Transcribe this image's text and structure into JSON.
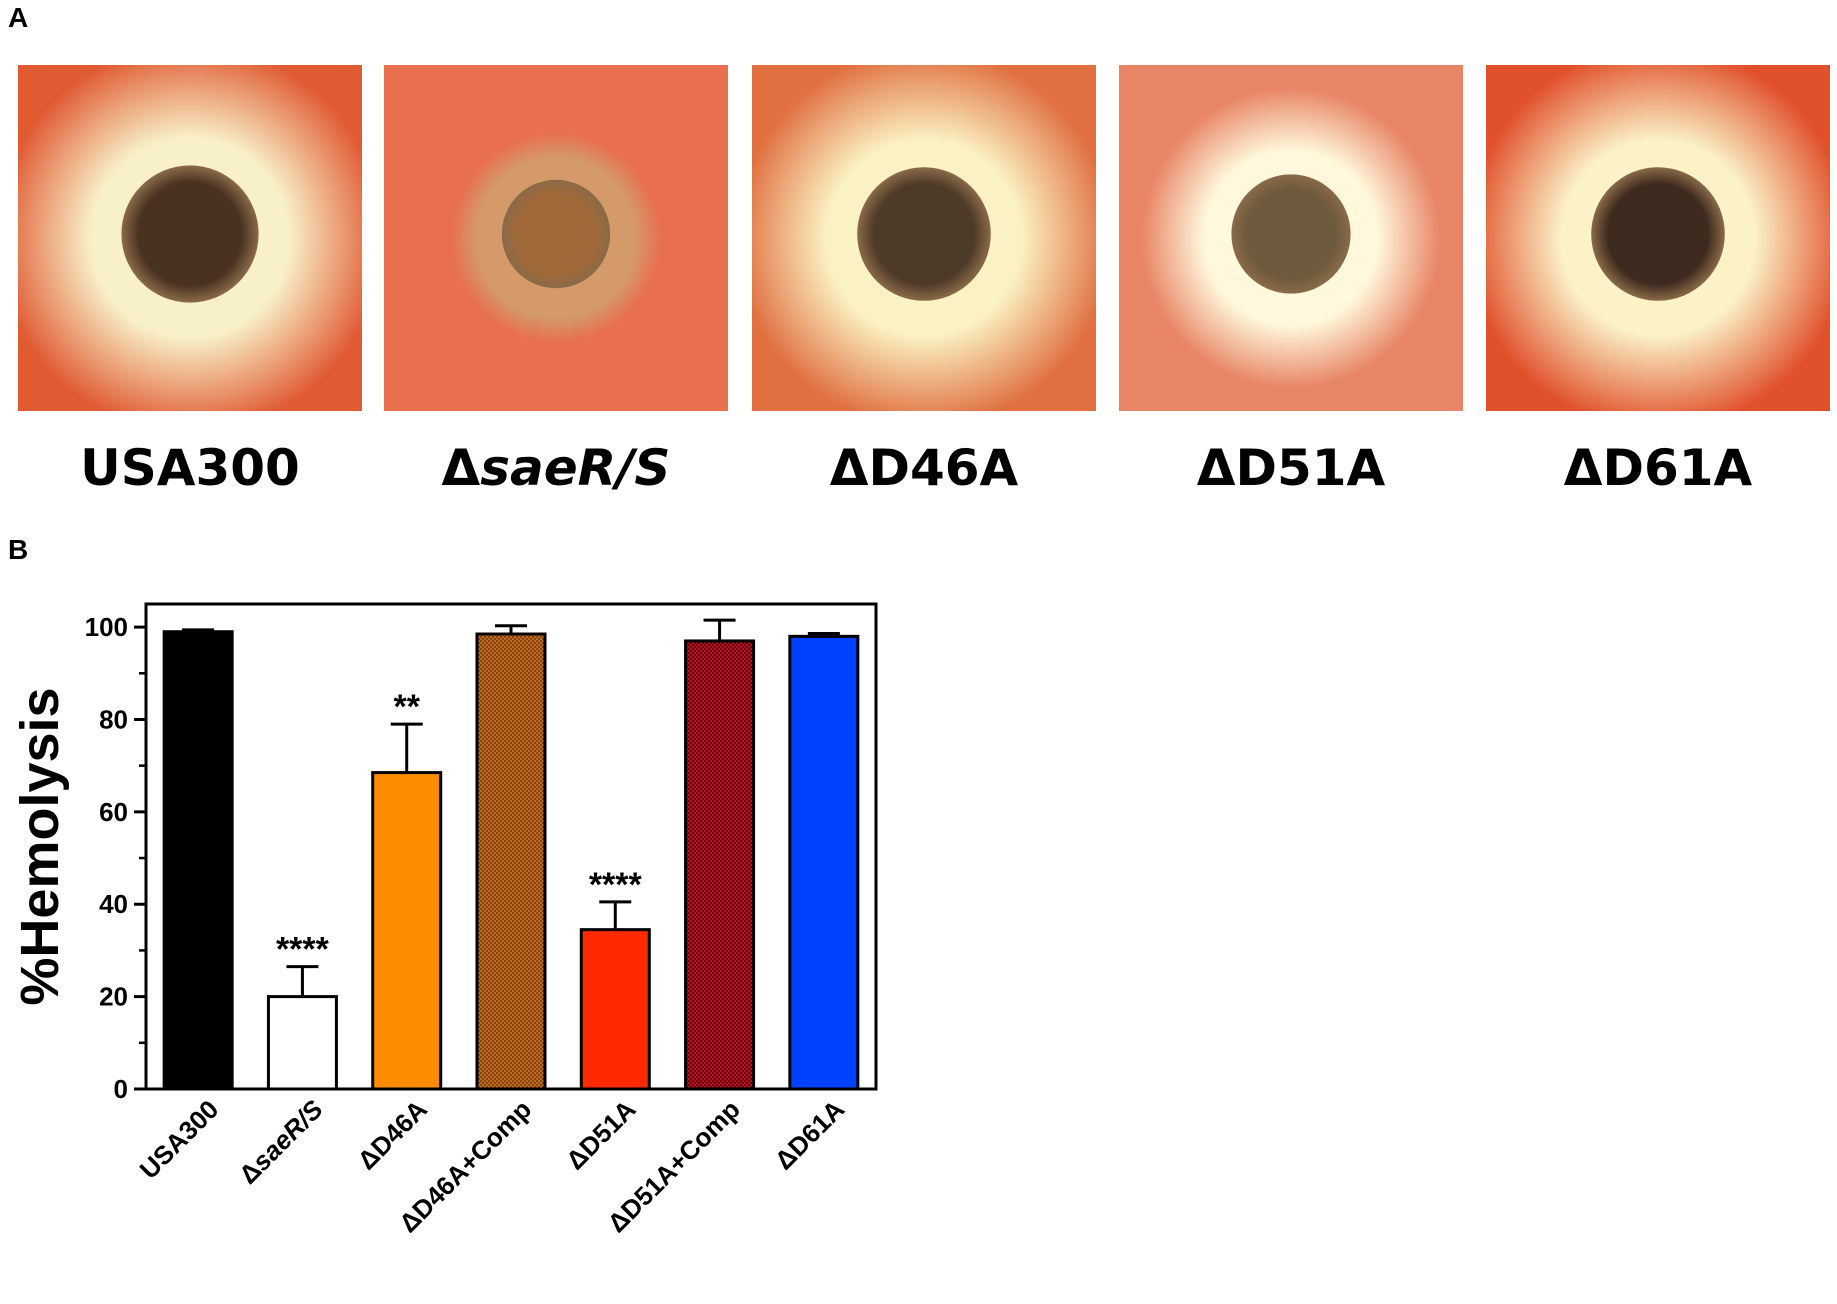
{
  "panels": {
    "a_letter": "A",
    "b_letter": "B"
  },
  "plates": [
    {
      "prefix": "",
      "italic": "",
      "suffix": "USA300",
      "halo": 1.0,
      "bg": "#e05a32",
      "ring": "#f8f0c8",
      "colony": "#4a3222",
      "colony_radius": 0.38
    },
    {
      "prefix": "Δ",
      "italic": "saeR/S",
      "suffix": "",
      "halo": 0.0,
      "bg": "#e8704f",
      "ring": "#d49a6a",
      "colony": "#a06a3a",
      "colony_radius": 0.3
    },
    {
      "prefix": "",
      "italic": "",
      "suffix": "ΔD46A",
      "halo": 0.95,
      "bg": "#e07040",
      "ring": "#fbf2c4",
      "colony": "#4e3a28",
      "colony_radius": 0.37
    },
    {
      "prefix": "",
      "italic": "",
      "suffix": "ΔD51A",
      "halo": 0.55,
      "bg": "#e88566",
      "ring": "#fff8dc",
      "colony": "#6e5a3c",
      "colony_radius": 0.33
    },
    {
      "prefix": "",
      "italic": "",
      "suffix": "ΔD61A",
      "halo": 1.0,
      "bg": "#e0502a",
      "ring": "#fbf2c8",
      "colony": "#3e2a1e",
      "colony_radius": 0.37
    }
  ],
  "chart_data": {
    "type": "bar",
    "ylabel": "%Hemolysis",
    "ylim": [
      0,
      105
    ],
    "yticks": [
      0,
      20,
      40,
      60,
      80,
      100
    ],
    "grid": false,
    "series": [
      {
        "values": [
          99,
          20,
          68.5,
          98.5,
          34.5,
          97,
          98
        ],
        "errors": [
          0.4,
          6.5,
          10.5,
          1.8,
          6,
          4.5,
          0.6
        ],
        "significance": [
          "",
          "****",
          "**",
          "",
          "****",
          "",
          ""
        ]
      }
    ],
    "categories": [
      "USA300",
      "ΔsaeR/S",
      "ΔD46A",
      "ΔD46A+Comp",
      "ΔD51A",
      "ΔD51A+Comp",
      "ΔD61A"
    ],
    "category_italic": [
      "",
      "saeR/S",
      "",
      "",
      "",
      "",
      ""
    ],
    "bar_colors": [
      "#000000",
      "#ffffff",
      "#ff8c00",
      "#8b4a1a",
      "#ff2a00",
      "#8a0a14",
      "#0040ff"
    ],
    "bar_patterns": [
      "solid",
      "solid",
      "solid",
      "dotted",
      "solid",
      "dotted",
      "solid"
    ]
  }
}
